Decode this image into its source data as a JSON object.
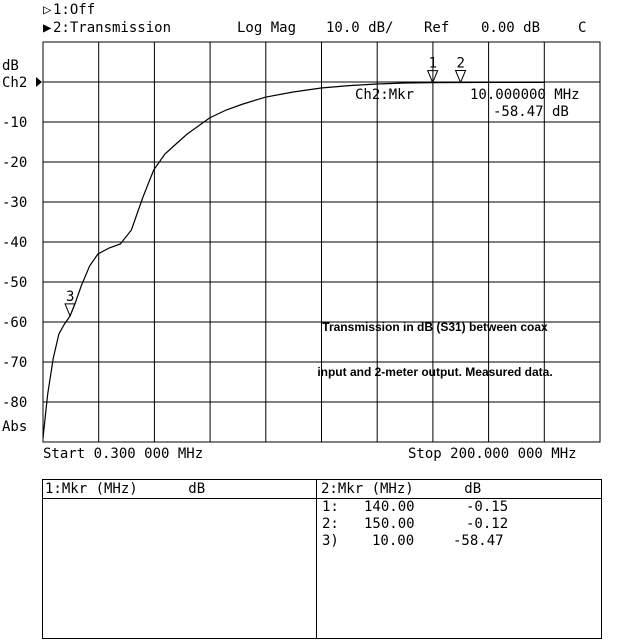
{
  "header": {
    "ch1_line": "1:Off",
    "ch2_line": "2:Transmission",
    "format": "Log Mag",
    "scale": "10.0 dB/",
    "ref_label": "Ref",
    "ref_value": "0.00 dB",
    "cal_flag": "C"
  },
  "axis": {
    "unit": "dB",
    "channel_ref": "Ch2",
    "abs_label": "Abs",
    "start_label": "Start 0.300 000 MHz",
    "stop_label": "Stop 200.000 000 MHz"
  },
  "marker_readout": {
    "label": "Ch2:Mkr",
    "freq": "10.000000 MHz",
    "value": "-58.47 dB"
  },
  "annotation": {
    "line1": "Transmission in dB (S31) between coax",
    "line2": "input and 2-meter output. Measured data."
  },
  "chart_data": {
    "type": "line",
    "xlabel": "",
    "ylabel": "dB",
    "x_range_mhz": [
      0.3,
      200
    ],
    "ylim": [
      -90,
      0
    ],
    "y_ticks": [
      {
        "value": 0,
        "label": "Ch2"
      },
      {
        "value": -10,
        "label": "-10"
      },
      {
        "value": -20,
        "label": "-20"
      },
      {
        "value": -30,
        "label": "-30"
      },
      {
        "value": -40,
        "label": "-40"
      },
      {
        "value": -50,
        "label": "-50"
      },
      {
        "value": -60,
        "label": "-60"
      },
      {
        "value": -70,
        "label": "-70"
      },
      {
        "value": -80,
        "label": "-80"
      }
    ],
    "grid": true,
    "series": [
      {
        "x_mhz": [
          0.3,
          2,
          4,
          6,
          8,
          10,
          12,
          14,
          17,
          20,
          24,
          28,
          32,
          36,
          40,
          44,
          48,
          52,
          56,
          60,
          66,
          72,
          80,
          90,
          100,
          110,
          120,
          130,
          140,
          150,
          160,
          170,
          180
        ],
        "y_db": [
          -89,
          -78,
          -69,
          -63,
          -60.5,
          -58.5,
          -55,
          -51,
          -46,
          -43,
          -41.5,
          -40.5,
          -37,
          -29,
          -22,
          -18,
          -15.5,
          -13,
          -11,
          -9,
          -7,
          -5.5,
          -3.8,
          -2.5,
          -1.5,
          -0.9,
          -0.5,
          -0.25,
          -0.15,
          -0.12,
          -0.1,
          -0.1,
          -0.1
        ]
      }
    ],
    "markers": [
      {
        "id": "1",
        "x_mhz": 140.0,
        "value_db": -0.15
      },
      {
        "id": "2",
        "x_mhz": 150.0,
        "value_db": -0.12
      },
      {
        "id": "3",
        "x_mhz": 10.0,
        "value_db": -58.47
      }
    ]
  },
  "table": {
    "left_header": "1:Mkr (MHz)      dB",
    "right_header": "2:Mkr (MHz)      dB",
    "rows": [
      {
        "id": "1:",
        "freq": "140.00",
        "value": "-0.15"
      },
      {
        "id": "2:",
        "freq": "150.00",
        "value": "-0.12"
      },
      {
        "id": "3)",
        "freq": "10.00",
        "value": "-58.47"
      }
    ]
  }
}
